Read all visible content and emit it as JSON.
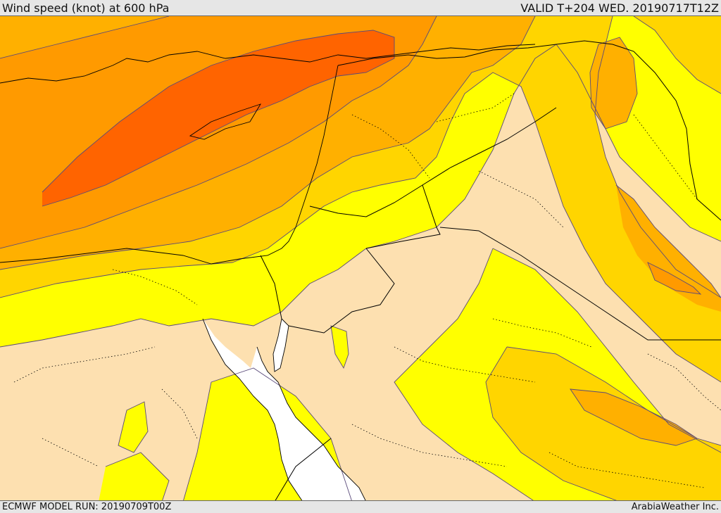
{
  "header": {
    "title": "Wind speed (knot) at 600 hPa",
    "valid_time": "VALID T+204 WED. 20190717T12Z"
  },
  "footer": {
    "model_run": "ECMWF MODEL RUN: 20190709T00Z",
    "credit": "ArabiaWeather Inc."
  },
  "colors": {
    "band_lowest": "#fde0b0",
    "band_low": "#ffff00",
    "band_mid": "#ffd500",
    "band_upper": "#ffb000",
    "band_high": "#ff9a00",
    "band_highest": "#ff6400",
    "sea_no_data": "#ffffff",
    "contour_line": "#5a4a7a",
    "border_line": "#000000"
  }
}
